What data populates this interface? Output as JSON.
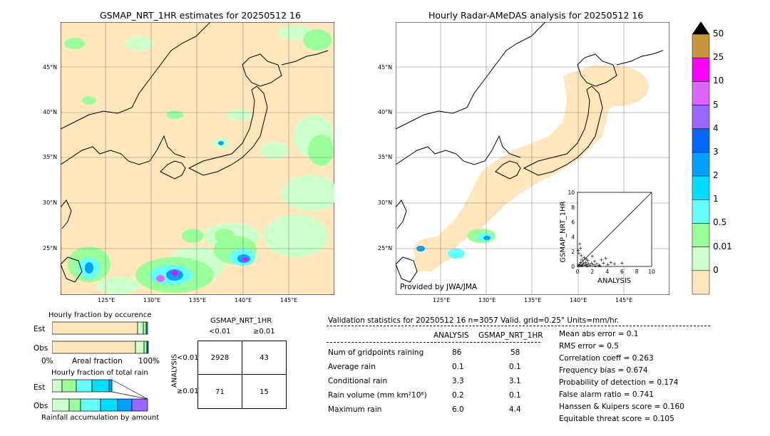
{
  "left_map": {
    "title": "GSMAP_NRT_1HR estimates for 20250512 16",
    "lat_ticks": [
      "45°N",
      "40°N",
      "35°N",
      "30°N",
      "25°N"
    ],
    "lon_ticks": [
      "125°E",
      "130°E",
      "135°E",
      "140°E",
      "145°E"
    ]
  },
  "right_map": {
    "title": "Hourly Radar-AMeDAS analysis for 20250512 16",
    "lat_ticks": [
      "45°N",
      "40°N",
      "35°N",
      "30°N",
      "25°N"
    ],
    "lon_ticks": [
      "125°E",
      "130°E",
      "135°E",
      "140°E",
      "145°E"
    ],
    "credit": "Provided by JWA/JMA"
  },
  "colorbar": {
    "labels": [
      "50",
      "25",
      "10",
      "5",
      "4",
      "3",
      "2",
      "1",
      "0.5",
      "0.01",
      "0"
    ],
    "colors": [
      "#c8963c",
      "#ff00ff",
      "#dd66ff",
      "#9966ff",
      "#0066ff",
      "#00a0ff",
      "#00ddff",
      "#66ffff",
      "#99ff99",
      "#ccffcc",
      "#ffe6bc"
    ],
    "extend_color": "#000000"
  },
  "scatter": {
    "xlabel": "ANALYSIS",
    "ylabel": "GSMAP_NRT_1HR",
    "ticks": [
      "0",
      "2",
      "4",
      "6",
      "8",
      "10"
    ]
  },
  "fraction_occurrence": {
    "title": "Hourly fraction by occurence",
    "rows": [
      "Est",
      "Obs"
    ],
    "axis_left": "0%",
    "axis_mid": "Areal fraction",
    "axis_right": "100%"
  },
  "fraction_total": {
    "title": "Hourly fraction of total rain",
    "rows": [
      "Est",
      "Obs"
    ],
    "footer": "Rainfall accumulation by amount"
  },
  "contingency": {
    "title": "GSMAP_NRT_1HR",
    "col_headers": [
      "<0.01",
      "≥0.01"
    ],
    "row_label": "ANALYSIS",
    "row_headers": [
      "<0.01",
      "≥0.01"
    ],
    "cells": [
      "2928",
      "43",
      "71",
      "15"
    ]
  },
  "validation": {
    "header": "Validation statistics for 20250512 16  n=3057 Valid. grid=0.25° Units=mm/hr.",
    "col_analysis": "ANALYSIS",
    "col_gsmap": "GSMAP_NRT_1HR",
    "rows": [
      {
        "label": "Num of gridpoints raining",
        "analysis": "86",
        "gsmap": "58"
      },
      {
        "label": "Average rain",
        "analysis": "0.1",
        "gsmap": "0.1"
      },
      {
        "label": "Conditional rain",
        "analysis": "3.3",
        "gsmap": "3.1"
      },
      {
        "label": "Rain volume (mm km²10⁶)",
        "analysis": "0.2",
        "gsmap": "0.1"
      },
      {
        "label": "Maximum rain",
        "analysis": "6.0",
        "gsmap": "4.4"
      }
    ],
    "scores": [
      "Mean abs error =    0.1",
      "RMS error =    0.5",
      "Correlation coeff =  0.263",
      "Frequency bias =  0.674",
      "Probability of detection =  0.174",
      "False alarm ratio =  0.741",
      "Hanssen & Kuipers score =  0.160",
      "Equitable threat score =  0.105"
    ]
  },
  "chart_data": {
    "type": "scatter",
    "xlabel": "ANALYSIS",
    "ylabel": "GSMAP_NRT_1HR",
    "xlim": [
      0,
      10
    ],
    "ylim": [
      0,
      10
    ],
    "points": [
      [
        0.1,
        0.1
      ],
      [
        0.2,
        0.3
      ],
      [
        0.3,
        0.1
      ],
      [
        0.4,
        0.6
      ],
      [
        0.5,
        0.2
      ],
      [
        0.6,
        0.9
      ],
      [
        0.7,
        0.3
      ],
      [
        0.8,
        0.5
      ],
      [
        0.9,
        1.2
      ],
      [
        1.0,
        0.2
      ],
      [
        1.1,
        0.6
      ],
      [
        1.2,
        0.3
      ],
      [
        1.4,
        0.8
      ],
      [
        1.5,
        0.4
      ],
      [
        1.7,
        0.2
      ],
      [
        1.9,
        0.5
      ],
      [
        2.1,
        0.3
      ],
      [
        2.3,
        0.7
      ],
      [
        2.6,
        0.4
      ],
      [
        2.9,
        0.2
      ],
      [
        3.2,
        0.9
      ],
      [
        3.5,
        0.5
      ],
      [
        3.8,
        1.1
      ],
      [
        4.1,
        0.3
      ],
      [
        4.5,
        0.6
      ],
      [
        5.0,
        0.4
      ],
      [
        6.0,
        0.5
      ],
      [
        0.2,
        1.8
      ],
      [
        0.4,
        2.5
      ],
      [
        0.3,
        3.1
      ],
      [
        0.1,
        2.2
      ],
      [
        0.5,
        1.5
      ],
      [
        1.2,
        1.0
      ],
      [
        2.0,
        1.4
      ],
      [
        0.6,
        0.1
      ],
      [
        1.3,
        0.1
      ],
      [
        2.4,
        0.1
      ],
      [
        3.0,
        0.1
      ]
    ]
  }
}
